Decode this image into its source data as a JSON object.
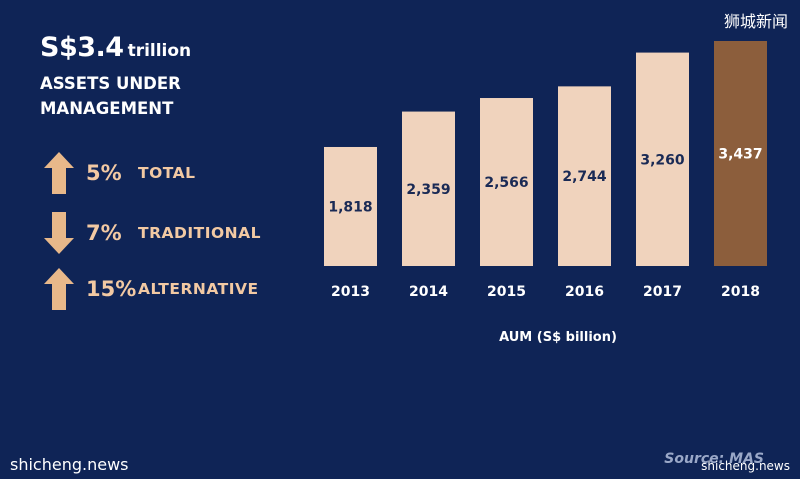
{
  "headline": {
    "value": "S$3.4",
    "unit": "trillion",
    "line1": "ASSETS UNDER",
    "line2": "MANAGEMENT"
  },
  "metrics": [
    {
      "direction": "up",
      "percent": "5%",
      "label": "TOTAL"
    },
    {
      "direction": "down",
      "percent": "7%",
      "label": "TRADITIONAL"
    },
    {
      "direction": "up",
      "percent": "15%",
      "label": "ALTERNATIVE"
    }
  ],
  "watermarks": {
    "top_right": "狮城新闻",
    "bottom_left": "shicheng.news",
    "bottom_right": "shicheng.news"
  },
  "source": "Source: MAS",
  "colors": {
    "background": "#0f2456",
    "bar": "#f0d3bd",
    "bar_highlight": "#8c5e3c",
    "accent": "#f2c9a3",
    "arrow": "#e8b88a"
  },
  "chart_data": {
    "type": "bar",
    "categories": [
      "2013",
      "2014",
      "2015",
      "2016",
      "2017",
      "2018"
    ],
    "values": [
      1818,
      2359,
      2566,
      2744,
      3260,
      3437
    ],
    "data_labels": [
      "1,818",
      "2,359",
      "2,566",
      "2,744",
      "3,260",
      "3,437"
    ],
    "highlight_index": 5,
    "xlabel": "AUM (S$ billion)",
    "ylabel": "",
    "ylim": [
      0,
      3437
    ],
    "grid": false,
    "legend": "none"
  }
}
